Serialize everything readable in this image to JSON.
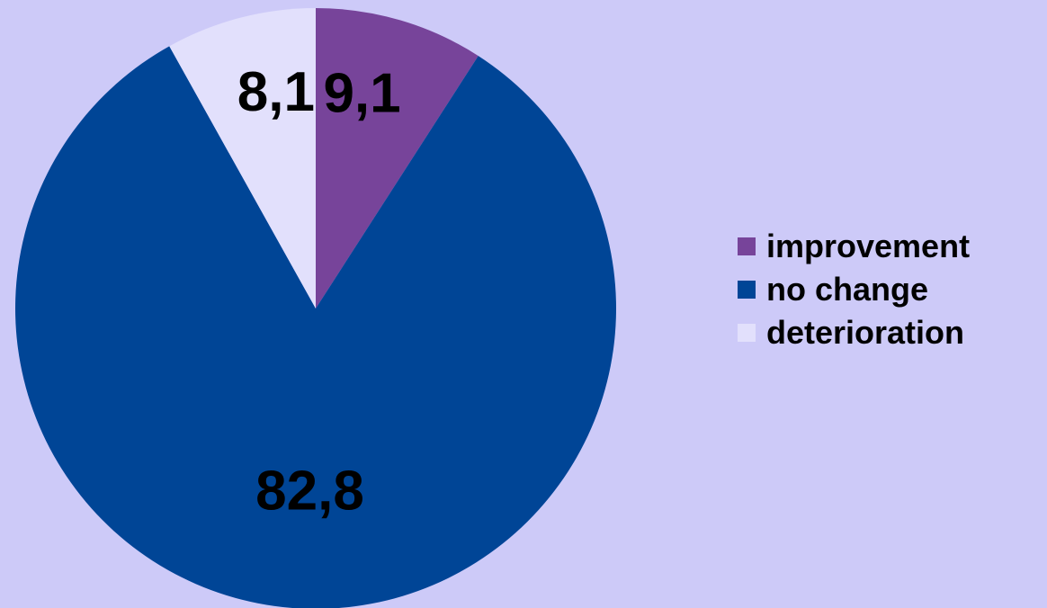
{
  "chart_data": {
    "type": "pie",
    "categories": [
      "improvement",
      "no change",
      "deterioration"
    ],
    "values": [
      9.1,
      82.8,
      8.1
    ],
    "value_labels": [
      "9,1",
      "82,8",
      "8,1"
    ],
    "colors": [
      "#77449a",
      "#004596",
      "#e2e0fc"
    ],
    "title": "",
    "legend_position": "right"
  },
  "background_color": "#cdcaf8"
}
